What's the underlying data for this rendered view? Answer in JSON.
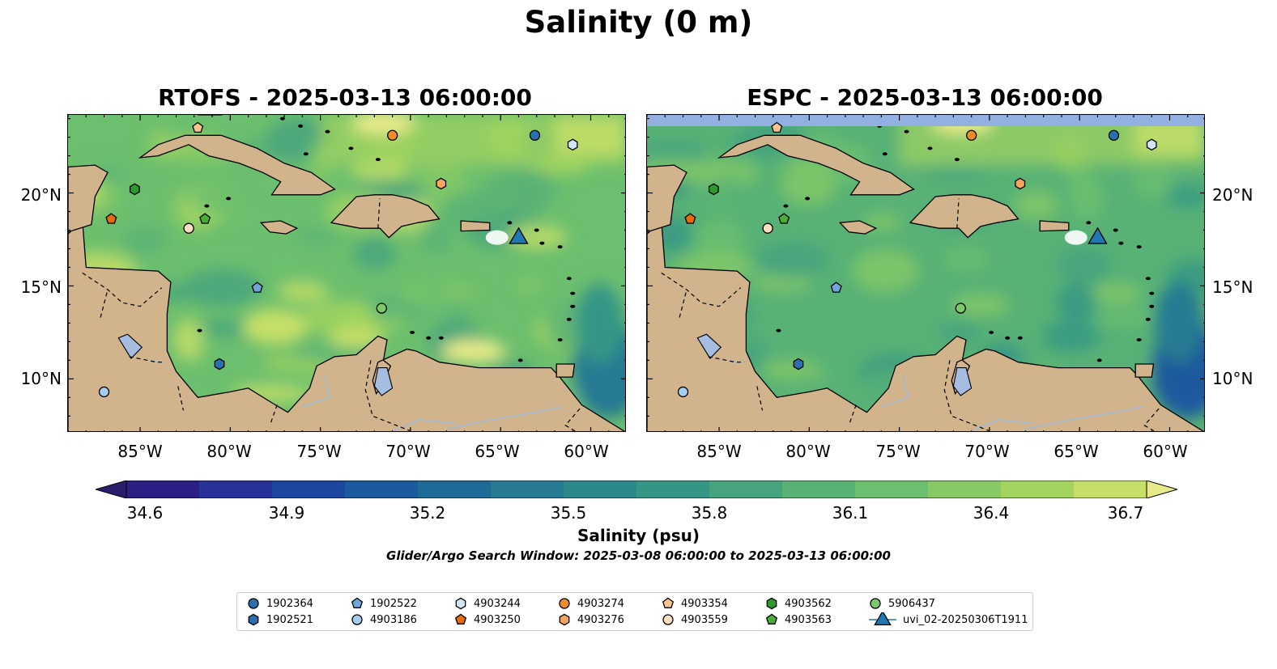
{
  "figure": {
    "suptitle": "Salinity (0 m)",
    "colorbar_label": "Salinity (psu)",
    "search_window": "Glider/Argo Search Window: 2025-03-08 06:00:00 to 2025-03-13 06:00:00"
  },
  "panels": [
    {
      "title": "RTOFS - 2025-03-13 06:00:00"
    },
    {
      "title": "ESPC - 2025-03-13 06:00:00"
    }
  ],
  "axes": {
    "lon_ticks": [
      "85°W",
      "80°W",
      "75°W",
      "70°W",
      "65°W",
      "60°W"
    ],
    "lat_ticks": [
      "20°N",
      "15°N",
      "10°N"
    ]
  },
  "colorbar": {
    "min": 34.6,
    "max": 36.7,
    "ticks": [
      "34.6",
      "34.9",
      "35.2",
      "35.5",
      "35.8",
      "36.1",
      "36.4",
      "36.7"
    ],
    "colors": [
      "#2a1d6b",
      "#2c1f83",
      "#27319a",
      "#1d46a0",
      "#1a5a9d",
      "#1f6b97",
      "#267a92",
      "#2d888c",
      "#369686",
      "#45a37e",
      "#58b276",
      "#6cbf6e",
      "#86c965",
      "#a3d45f",
      "#c6df68",
      "#e8ea8a"
    ]
  },
  "map_colors": {
    "land": "#d2b48c",
    "deep_fresh": "#2a1d6b",
    "lake": "#a5bde0",
    "espc_nodata_strip": "#92b1e0"
  },
  "legend": {
    "items": [
      {
        "label": "1902364",
        "marker": "circle",
        "color": "#2a6fb0"
      },
      {
        "label": "1902521",
        "marker": "hexagon",
        "color": "#2a6fb0"
      },
      {
        "label": "1902522",
        "marker": "pentagon",
        "color": "#6fa7dc"
      },
      {
        "label": "4903186",
        "marker": "circle",
        "color": "#a5cdee"
      },
      {
        "label": "4903244",
        "marker": "hexagon",
        "color": "#cfe6f8"
      },
      {
        "label": "4903250",
        "marker": "pentagon",
        "color": "#e66b0e"
      },
      {
        "label": "4903274",
        "marker": "circle",
        "color": "#f08a2a"
      },
      {
        "label": "4903276",
        "marker": "hexagon",
        "color": "#f6a45e"
      },
      {
        "label": "4903354",
        "marker": "pentagon",
        "color": "#f9c28f"
      },
      {
        "label": "4903559",
        "marker": "circle",
        "color": "#fde0c2"
      },
      {
        "label": "4903562",
        "marker": "hexagon",
        "color": "#2e9a2e"
      },
      {
        "label": "4903563",
        "marker": "pentagon",
        "color": "#4aad3a"
      },
      {
        "label": "5906437",
        "marker": "circle",
        "color": "#7cc96a"
      },
      {
        "label": "uvi_02-20250306T1911",
        "marker": "triangle",
        "color": "#1f77b4"
      }
    ]
  },
  "platform_positions": [
    {
      "id": "1902364",
      "lon": -63.1,
      "lat": 23.1
    },
    {
      "id": "1902521",
      "lon": -80.6,
      "lat": 10.8
    },
    {
      "id": "1902522",
      "lon": -78.5,
      "lat": 14.9
    },
    {
      "id": "4903186",
      "lon": -87.0,
      "lat": 9.3
    },
    {
      "id": "4903244",
      "lon": -61.0,
      "lat": 22.6
    },
    {
      "id": "4903250",
      "lon": -86.6,
      "lat": 18.6
    },
    {
      "id": "4903274",
      "lon": -71.0,
      "lat": 23.1
    },
    {
      "id": "4903276",
      "lon": -68.3,
      "lat": 20.5
    },
    {
      "id": "4903354",
      "lon": -81.8,
      "lat": 23.5
    },
    {
      "id": "4903559",
      "lon": -82.3,
      "lat": 18.1
    },
    {
      "id": "4903562",
      "lon": -85.3,
      "lat": 20.2
    },
    {
      "id": "4903563",
      "lon": -81.4,
      "lat": 18.6
    },
    {
      "id": "5906437",
      "lon": -71.6,
      "lat": 13.8
    },
    {
      "id": "uvi_02-20250306T1911",
      "lon": -64.0,
      "lat": 17.7
    }
  ]
}
